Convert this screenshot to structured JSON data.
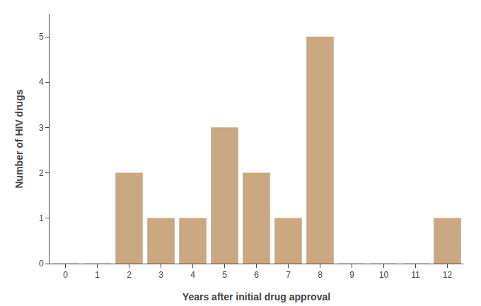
{
  "chart_data": {
    "type": "bar",
    "x": [
      0,
      1,
      2,
      3,
      4,
      5,
      6,
      7,
      8,
      9,
      10,
      11,
      12
    ],
    "values": [
      0,
      0,
      2,
      1,
      1,
      3,
      2,
      1,
      5,
      0,
      0,
      0,
      1
    ],
    "color": "#C9A882",
    "xlabel": "Years after initial drug approval",
    "ylabel": "Number of HIV drugs",
    "xlim": [
      -0.5,
      12.5
    ],
    "ylim": [
      0,
      5.5
    ],
    "xticks": [
      0,
      1,
      2,
      3,
      4,
      5,
      6,
      7,
      8,
      9,
      10,
      11,
      12
    ],
    "yticks": [
      0,
      1,
      2,
      3,
      4,
      5
    ],
    "grid": false
  }
}
